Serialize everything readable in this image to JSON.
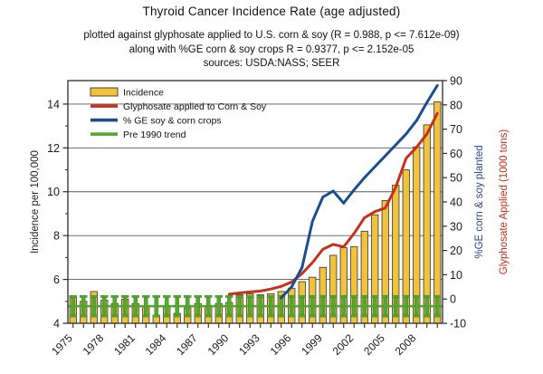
{
  "header": {
    "title": "Thyroid Cancer Incidence Rate (age adjusted)",
    "subtitle1": "plotted against glyphosate applied to U.S. corn & soy (R = 0.988, p <= 7.612e-09)",
    "subtitle2": "along with %GE corn & soy crops R = 0.9377, p <= 2.152e-05",
    "subtitle3": "sources: USDA:NASS; SEER"
  },
  "chart_data": {
    "type": "bar",
    "x": [
      1975,
      1976,
      1977,
      1978,
      1979,
      1980,
      1981,
      1982,
      1983,
      1984,
      1985,
      1986,
      1987,
      1988,
      1989,
      1990,
      1991,
      1992,
      1993,
      1994,
      1995,
      1996,
      1997,
      1998,
      1999,
      2000,
      2001,
      2002,
      2003,
      2004,
      2005,
      2006,
      2007,
      2008,
      2009,
      2010
    ],
    "series": [
      {
        "name": "Incidence",
        "type": "bar",
        "axis": "left",
        "color": "#F1C33C",
        "stroke": "#333333",
        "values": [
          5.2,
          5.0,
          5.45,
          5.05,
          4.9,
          5.1,
          4.9,
          4.75,
          4.35,
          4.75,
          4.45,
          4.7,
          4.9,
          4.75,
          4.9,
          4.95,
          5.3,
          5.35,
          5.3,
          5.35,
          5.45,
          5.6,
          5.9,
          6.1,
          6.55,
          7.1,
          7.45,
          7.5,
          8.2,
          8.95,
          9.6,
          10.3,
          11.0,
          12.05,
          13.05,
          14.1
        ]
      },
      {
        "name": "Glyphosate applied to Corn & Soy",
        "type": "line",
        "axis": "right",
        "color": "#C5311C",
        "x": [
          1990,
          1991,
          1992,
          1993,
          1994,
          1995,
          1996,
          1997,
          1998,
          1999,
          2000,
          2001,
          2002,
          2003,
          2004,
          2005,
          2006,
          2007,
          2008,
          2009,
          2010
        ],
        "values": [
          2.0,
          2.5,
          2.9,
          3.3,
          4.1,
          5.2,
          7.0,
          10.5,
          15.0,
          20.5,
          22.5,
          21.5,
          27.0,
          33.5,
          36.0,
          37.5,
          46.0,
          58.0,
          62.5,
          68.0,
          76.5
        ]
      },
      {
        "name": "% GE soy & corn crops",
        "type": "line",
        "axis": "right",
        "color": "#1A4E8F",
        "x": [
          1995,
          1996,
          1997,
          1998,
          1999,
          2000,
          2001,
          2002,
          2003,
          2004,
          2005,
          2006,
          2007,
          2008,
          2009,
          2010
        ],
        "values": [
          0.5,
          5.0,
          13.0,
          32.0,
          42.0,
          44.5,
          39.5,
          45.0,
          50.0,
          54.5,
          59.0,
          63.5,
          68.0,
          73.5,
          81.0,
          88.0
        ]
      },
      {
        "name": "Pre 1990 trend",
        "type": "trend-with-errorbars",
        "axis": "left",
        "color": "#53A733",
        "trend_value": 4.78,
        "error_low": 4.33,
        "error_high": 5.23
      }
    ],
    "left_axis": {
      "label": "Incidence per 100,000",
      "ticks": [
        4,
        6,
        8,
        10,
        12,
        14
      ],
      "minor_ticks": [
        5,
        7,
        9,
        11,
        13
      ],
      "grid_ticks": [
        6,
        8,
        10,
        12,
        14
      ],
      "range": [
        4,
        15.07
      ]
    },
    "right_axis": {
      "ticks": [
        -10,
        0,
        10,
        20,
        30,
        40,
        50,
        60,
        70,
        80,
        90
      ],
      "range": [
        -10,
        90
      ],
      "labels": [
        {
          "text": "%GE corn & soy planted",
          "color": "#2B4590"
        },
        {
          "text": "Glyphosate Applied (1000 tons)",
          "color": "#C5311C"
        }
      ]
    },
    "x_axis": {
      "labeled_years": [
        1975,
        1978,
        1981,
        1984,
        1987,
        1990,
        1993,
        1996,
        1999,
        2002,
        2005,
        2008
      ]
    },
    "legend": [
      {
        "label": "Incidence",
        "swatch": "bar",
        "color": "#F1C33C"
      },
      {
        "label": "Glyphosate applied to Corn & Soy",
        "swatch": "line",
        "color": "#C5311C"
      },
      {
        "label": "% GE soy & corn crops",
        "swatch": "line",
        "color": "#1A4E8F"
      },
      {
        "label": "Pre 1990 trend",
        "swatch": "line",
        "color": "#53A733"
      }
    ],
    "grid": "horizontal",
    "legend_position": "top-left-inside"
  }
}
